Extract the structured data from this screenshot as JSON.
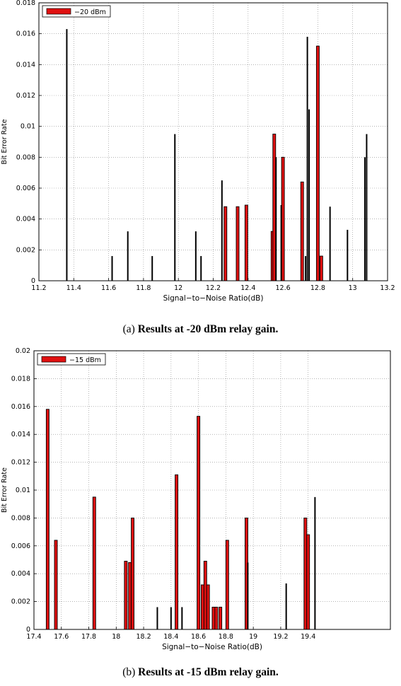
{
  "chart_data": [
    {
      "type": "bar",
      "ylabel": "Bit Error Rate",
      "xlabel": "Signal−to−Noise Ratio(dB)",
      "xlim": [
        11.2,
        13.2
      ],
      "ylim": [
        0,
        0.018
      ],
      "grid": true,
      "legend_position": "top-left",
      "x_ticks": [
        "11.2",
        "11.4",
        "11.6",
        "11.8",
        "12",
        "12.2",
        "12.4",
        "12.6",
        "12.8",
        "13",
        "13.2"
      ],
      "y_ticks": [
        "0",
        "0.002",
        "0.004",
        "0.006",
        "0.008",
        "0.01",
        "0.012",
        "0.014",
        "0.016",
        "0.018"
      ],
      "legend": [
        {
          "label": "−20 dBm",
          "color": "#e01010"
        }
      ],
      "caption_prefix": "(a)",
      "caption_text": "Results at -20 dBm relay gain.",
      "series": [
        {
          "name": "−20 dBm",
          "color": "#e01010",
          "x": [
            12.27,
            12.34,
            12.39,
            12.54,
            12.55,
            12.6,
            12.71,
            12.8,
            12.82
          ],
          "values": [
            0.0048,
            0.0048,
            0.0049,
            0.0032,
            0.0095,
            0.008,
            0.0064,
            0.0152,
            0.0016
          ]
        },
        {
          "color": "#000000",
          "x": [
            11.36,
            11.62,
            11.71,
            11.85,
            11.98,
            12.1,
            12.13,
            12.25,
            12.56,
            12.59,
            12.73,
            12.74,
            12.75,
            12.87,
            12.97,
            13.07,
            13.08
          ],
          "values": [
            0.0163,
            0.0016,
            0.0032,
            0.0016,
            0.0095,
            0.0032,
            0.0016,
            0.0065,
            0.008,
            0.0049,
            0.0016,
            0.0158,
            0.0111,
            0.0048,
            0.0033,
            0.008,
            0.0095
          ]
        }
      ]
    },
    {
      "type": "bar",
      "ylabel": "Bit Error Rate",
      "xlabel": "Signal−to−Noise Ratio(dB)",
      "xlim": [
        17.4,
        20.0
      ],
      "ylim": [
        0,
        0.02
      ],
      "grid": true,
      "legend_position": "top-left",
      "x_ticks": [
        "17.4",
        "17.6",
        "17.8",
        "18",
        "18.2",
        "18.4",
        "18.6",
        "18.8",
        "19",
        "19.2",
        "19.4"
      ],
      "y_ticks": [
        "0",
        "0.002",
        "0.004",
        "0.006",
        "0.008",
        "0.01",
        "0.012",
        "0.014",
        "0.016",
        "0.018",
        "0.02"
      ],
      "legend": [
        {
          "label": "−15 dBm",
          "color": "#e01010"
        }
      ],
      "caption_prefix": "(b)",
      "caption_text": "Results at -15 dBm relay gain.",
      "series": [
        {
          "name": "−15 dBm",
          "color": "#e01010",
          "x": [
            17.5,
            17.56,
            17.84,
            18.07,
            18.1,
            18.12,
            18.44,
            18.6,
            18.63,
            18.65,
            18.67,
            18.71,
            18.73,
            18.76,
            18.81,
            18.95,
            19.38,
            19.4
          ],
          "values": [
            0.0158,
            0.0064,
            0.0095,
            0.0049,
            0.0048,
            0.008,
            0.0111,
            0.0153,
            0.0032,
            0.0049,
            0.0032,
            0.0016,
            0.0016,
            0.0016,
            0.0064,
            0.008,
            0.008,
            0.0068
          ]
        },
        {
          "color": "#000000",
          "x": [
            18.3,
            18.4,
            18.48,
            18.96,
            19.24,
            19.45
          ],
          "values": [
            0.0016,
            0.0016,
            0.0016,
            0.0048,
            0.0033,
            0.0095
          ]
        }
      ]
    }
  ]
}
